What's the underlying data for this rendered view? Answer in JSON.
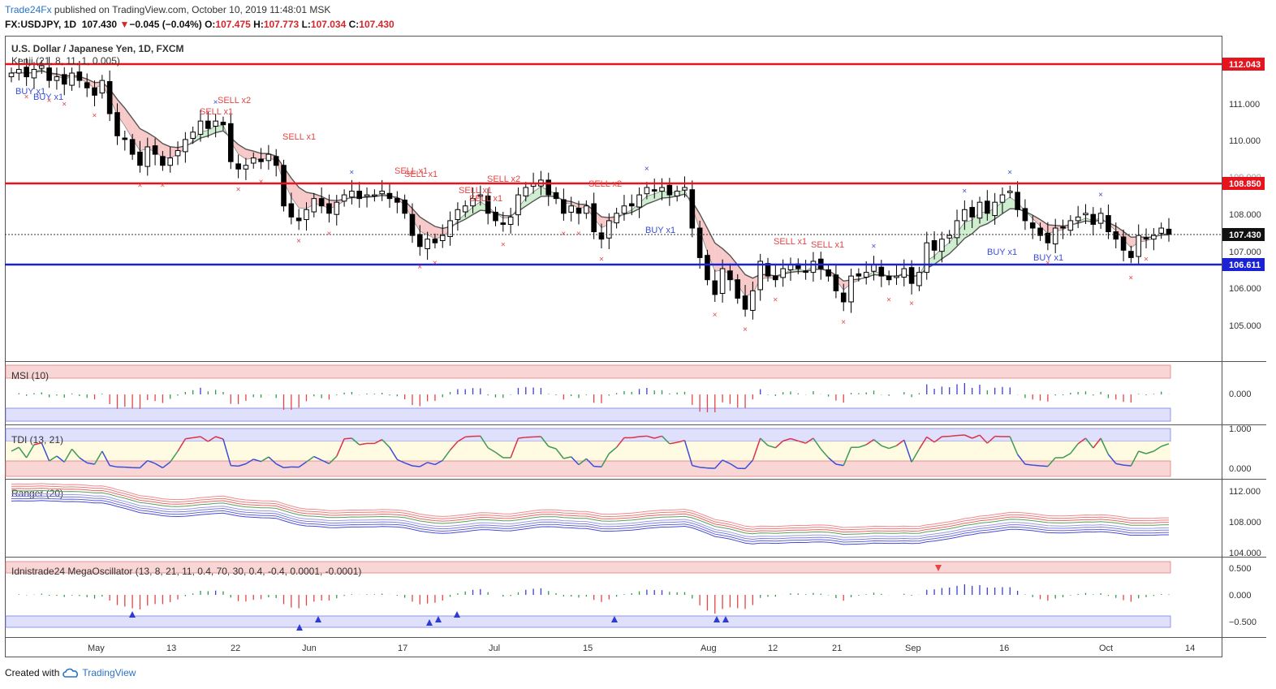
{
  "header": {
    "brand": "Trade24Fx",
    "published_text": " published on TradingView.com, October 10, 2019 11:48:01 MSK",
    "symbol_line": "FX:USDJPY, 1D",
    "last": "107.430",
    "change": "−0.045 (−0.04%)",
    "open_label": "O:",
    "open": "107.475",
    "high_label": "H:",
    "high": "107.773",
    "low_label": "L:",
    "low": "107.034",
    "close_label": "C:",
    "close": "107.430"
  },
  "main_pane": {
    "title": "U.S. Dollar / Japanese Yen, 1D, FXCM",
    "indicator": "Kenji (21, 8, 11, 1, 0.005)"
  },
  "price_labels": {
    "resistance_high": "112.043",
    "resistance_mid": "108.850",
    "current": "107.430",
    "support": "106.611"
  },
  "signal_labels": [
    {
      "text": "BUY x1",
      "type": "buy"
    },
    {
      "text": "BUY x1",
      "type": "buy"
    },
    {
      "text": "SELL x1",
      "type": "sell"
    },
    {
      "text": "SELL x2",
      "type": "sell"
    },
    {
      "text": "SELL x1",
      "type": "sell"
    },
    {
      "text": "SELL x1",
      "type": "sell"
    },
    {
      "text": "SELL x1",
      "type": "sell"
    },
    {
      "text": "SELL x1",
      "type": "sell"
    },
    {
      "text": "SELL x1",
      "type": "sell"
    },
    {
      "text": "SELL x2",
      "type": "sell"
    },
    {
      "text": "SELL x2",
      "type": "sell"
    },
    {
      "text": "BUY x1",
      "type": "buy"
    },
    {
      "text": "SELL x1",
      "type": "sell"
    },
    {
      "text": "SELL x1",
      "type": "sell"
    },
    {
      "text": "BUY x1",
      "type": "buy"
    },
    {
      "text": "BUY x1",
      "type": "buy"
    }
  ],
  "panes": {
    "msi": {
      "title": "MSI (10)",
      "ticks": [
        "0.000"
      ]
    },
    "tdi": {
      "title": "TDI (13, 21)",
      "ticks": [
        "1.000",
        "0.000"
      ]
    },
    "ranger": {
      "title": "Ranger (20)",
      "ticks": [
        "112.000",
        "108.000",
        "104.000"
      ]
    },
    "mega": {
      "title": "Idnistrade24 MegaOscillator (13, 8, 21, 11, 0.4, 70, 30, 0.4, -0.4, 0.0001, -0.0001)",
      "ticks": [
        "0.500",
        "0.000",
        "−0.500"
      ]
    }
  },
  "x_axis": {
    "labels": [
      "May",
      "13",
      "22",
      "Jun",
      "17",
      "Jul",
      "15",
      "Aug",
      "12",
      "21",
      "Sep",
      "16",
      "Oct",
      "14"
    ]
  },
  "footer": {
    "created_with": "Created with",
    "tradingview": "TradingView"
  },
  "colors": {
    "up": "#ffffff",
    "down": "#000000",
    "resistance": "#e6141d",
    "support": "#1a22d4",
    "buy": "#3b4ed6",
    "sell": "#e54545",
    "cloud_down": "#f7c9c9",
    "cloud_up": "#cfeed0"
  },
  "chart_data": {
    "type": "candlestick",
    "title": "U.S. Dollar / Japanese Yen, 1D, FXCM",
    "y_range": [
      104.2,
      112.8
    ],
    "y_ticks": [
      105,
      106,
      107,
      108,
      109,
      110,
      111
    ],
    "horizontal_levels": [
      112.043,
      108.85,
      106.611
    ],
    "last_price": 107.43,
    "close_series": [
      111.8,
      111.9,
      111.7,
      111.9,
      112.0,
      111.6,
      111.7,
      111.5,
      111.8,
      111.6,
      111.4,
      111.2,
      111.6,
      110.7,
      110.1,
      110.0,
      109.6,
      109.3,
      109.8,
      109.6,
      109.3,
      109.5,
      109.7,
      110.0,
      110.2,
      110.5,
      110.3,
      110.5,
      110.4,
      109.4,
      109.2,
      109.3,
      109.5,
      109.4,
      109.6,
      109.3,
      108.2,
      107.9,
      107.8,
      108.1,
      108.4,
      108.2,
      108.0,
      108.3,
      108.5,
      108.6,
      108.4,
      108.5,
      108.5,
      108.6,
      108.4,
      108.3,
      108.0,
      107.4,
      107.1,
      107.3,
      107.2,
      107.4,
      107.8,
      108.1,
      108.2,
      108.4,
      108.5,
      108.0,
      107.8,
      107.7,
      107.9,
      108.5,
      108.7,
      108.8,
      108.9,
      108.5,
      108.4,
      108.0,
      108.2,
      108.0,
      108.2,
      107.5,
      107.3,
      107.8,
      108.0,
      108.2,
      108.2,
      108.5,
      108.7,
      108.6,
      108.7,
      108.5,
      108.6,
      108.7,
      107.6,
      106.8,
      106.2,
      105.8,
      106.5,
      106.2,
      105.7,
      105.4,
      105.9,
      106.7,
      106.3,
      106.2,
      106.5,
      106.6,
      106.5,
      106.4,
      106.7,
      106.5,
      106.3,
      105.9,
      105.6,
      106.3,
      106.3,
      106.4,
      106.6,
      106.3,
      106.2,
      106.3,
      106.5,
      106.1,
      106.4,
      107.2,
      107.0,
      107.3,
      107.4,
      107.8,
      108.1,
      107.9,
      108.3,
      108.0,
      108.3,
      108.5,
      108.6,
      108.1,
      107.8,
      107.6,
      107.4,
      107.2,
      107.6,
      107.6,
      107.8,
      107.9,
      108.0,
      107.7,
      108.0,
      107.5,
      107.3,
      107.0,
      106.8,
      107.4,
      107.3,
      107.4,
      107.6,
      107.43
    ]
  }
}
